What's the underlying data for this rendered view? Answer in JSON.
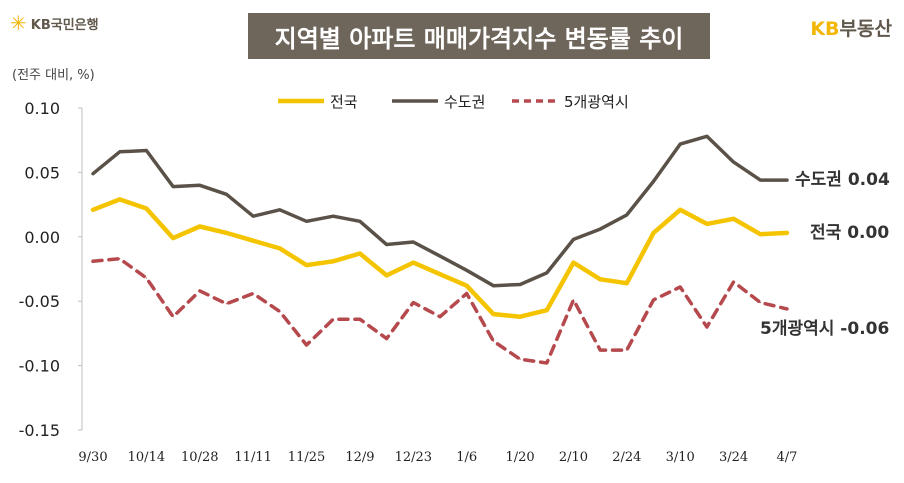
{
  "header": {
    "logo_left_text": "KB국민은행",
    "logo_left_icon": "kb-star-icon",
    "title": "지역별 아파트 매매가격지수 변동률 추이",
    "logo_right_kb": "KB",
    "logo_right_text": "부동산"
  },
  "colors": {
    "title_bg": "#6e655b",
    "national": "#f5c400",
    "capital": "#5a5248",
    "metro5": "#b5494d"
  },
  "chart_data": {
    "type": "line",
    "ylabel": "(전주 대비, %)",
    "ylim": [
      -0.15,
      0.1
    ],
    "yticks": [
      "0.10",
      "0.05",
      "0.00",
      "-0.05",
      "-0.10",
      "-0.15"
    ],
    "ytick_values": [
      0.1,
      0.05,
      0.0,
      -0.05,
      -0.1,
      -0.15
    ],
    "x_labels": [
      "9/30",
      "10/14",
      "10/28",
      "11/11",
      "11/25",
      "12/9",
      "12/23",
      "1/6",
      "1/20",
      "2/10",
      "2/24",
      "3/10",
      "3/24",
      "4/7"
    ],
    "x_label_indices": [
      0,
      2,
      4,
      6,
      8,
      10,
      12,
      14,
      16,
      18,
      20,
      22,
      24,
      26
    ],
    "n_points": 27,
    "legend_position": "top-center",
    "series": [
      {
        "name": "전국",
        "key": "national",
        "style": "solid",
        "values": [
          0.021,
          0.029,
          0.022,
          -0.001,
          0.008,
          0.003,
          -0.003,
          -0.009,
          -0.022,
          -0.019,
          -0.013,
          -0.03,
          -0.02,
          -0.029,
          -0.038,
          -0.06,
          -0.062,
          -0.057,
          -0.02,
          -0.033,
          -0.036,
          0.003,
          0.021,
          0.01,
          0.014,
          0.002,
          0.003
        ],
        "end_label": "전국 0.00"
      },
      {
        "name": "수도권",
        "key": "capital",
        "style": "solid",
        "values": [
          0.049,
          0.066,
          0.067,
          0.039,
          0.04,
          0.033,
          0.016,
          0.021,
          0.012,
          0.016,
          0.012,
          -0.006,
          -0.004,
          -0.015,
          -0.026,
          -0.038,
          -0.037,
          -0.028,
          -0.002,
          0.006,
          0.017,
          0.043,
          0.072,
          0.078,
          0.058,
          0.044,
          0.044
        ],
        "end_label": "수도권 0.04"
      },
      {
        "name": "5개광역시",
        "key": "metro5",
        "style": "dashed",
        "values": [
          -0.019,
          -0.017,
          -0.032,
          -0.062,
          -0.042,
          -0.052,
          -0.044,
          -0.058,
          -0.084,
          -0.064,
          -0.064,
          -0.079,
          -0.051,
          -0.062,
          -0.044,
          -0.081,
          -0.095,
          -0.098,
          -0.049,
          -0.088,
          -0.088,
          -0.049,
          -0.039,
          -0.07,
          -0.035,
          -0.051,
          -0.056
        ],
        "end_label": "5개광역시 -0.06"
      }
    ]
  }
}
